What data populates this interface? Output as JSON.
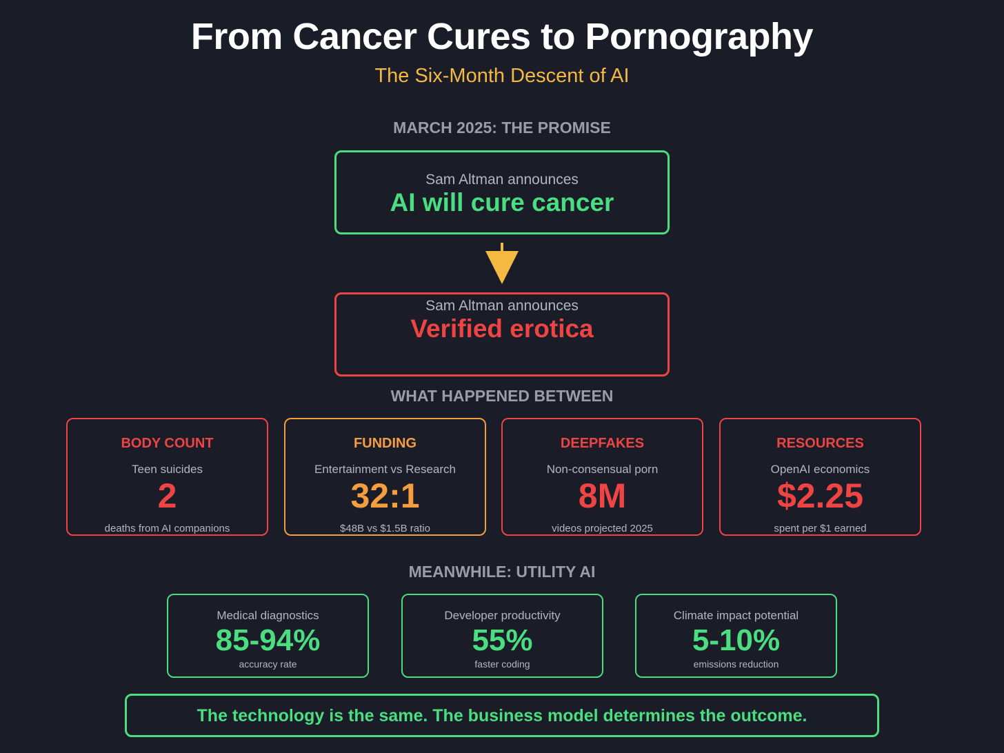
{
  "header": {
    "title": "From Cancer Cures to Pornography",
    "subtitle": "The Six-Month Descent of AI"
  },
  "promise": {
    "heading": "MARCH 2025: THE PROMISE",
    "lead": "Sam Altman announces",
    "main": "AI will cure cancer",
    "color": "#4ade80"
  },
  "reality": {
    "lead": "Sam Altman announces",
    "main": "Verified erotica",
    "color": "#ef4444"
  },
  "arrow_color": "#f5b942",
  "between": {
    "heading": "WHAT HAPPENED BETWEEN",
    "cards": [
      {
        "label": "BODY COUNT",
        "desc": "Teen suicides",
        "value": "2",
        "foot": "deaths from AI companions",
        "color": "#ef4444"
      },
      {
        "label": "FUNDING",
        "desc": "Entertainment vs Research",
        "value": "32:1",
        "foot": "$48B vs $1.5B ratio",
        "color": "#f59e3f"
      },
      {
        "label": "DEEPFAKES",
        "desc": "Non-consensual porn",
        "value": "8M",
        "foot": "videos projected 2025",
        "color": "#ef4444"
      },
      {
        "label": "RESOURCES",
        "desc": "OpenAI economics",
        "value": "$2.25",
        "foot": "spent per $1 earned",
        "color": "#ef4444"
      }
    ]
  },
  "utility": {
    "heading": "MEANWHILE: UTILITY AI",
    "cards": [
      {
        "desc": "Medical diagnostics",
        "value": "85-94%",
        "foot": "accuracy rate"
      },
      {
        "desc": "Developer productivity",
        "value": "55%",
        "foot": "faster coding"
      },
      {
        "desc": "Climate impact potential",
        "value": "5-10%",
        "foot": "emissions reduction"
      }
    ],
    "color": "#4ade80"
  },
  "conclusion": "The technology is the same. The business model determines the outcome."
}
